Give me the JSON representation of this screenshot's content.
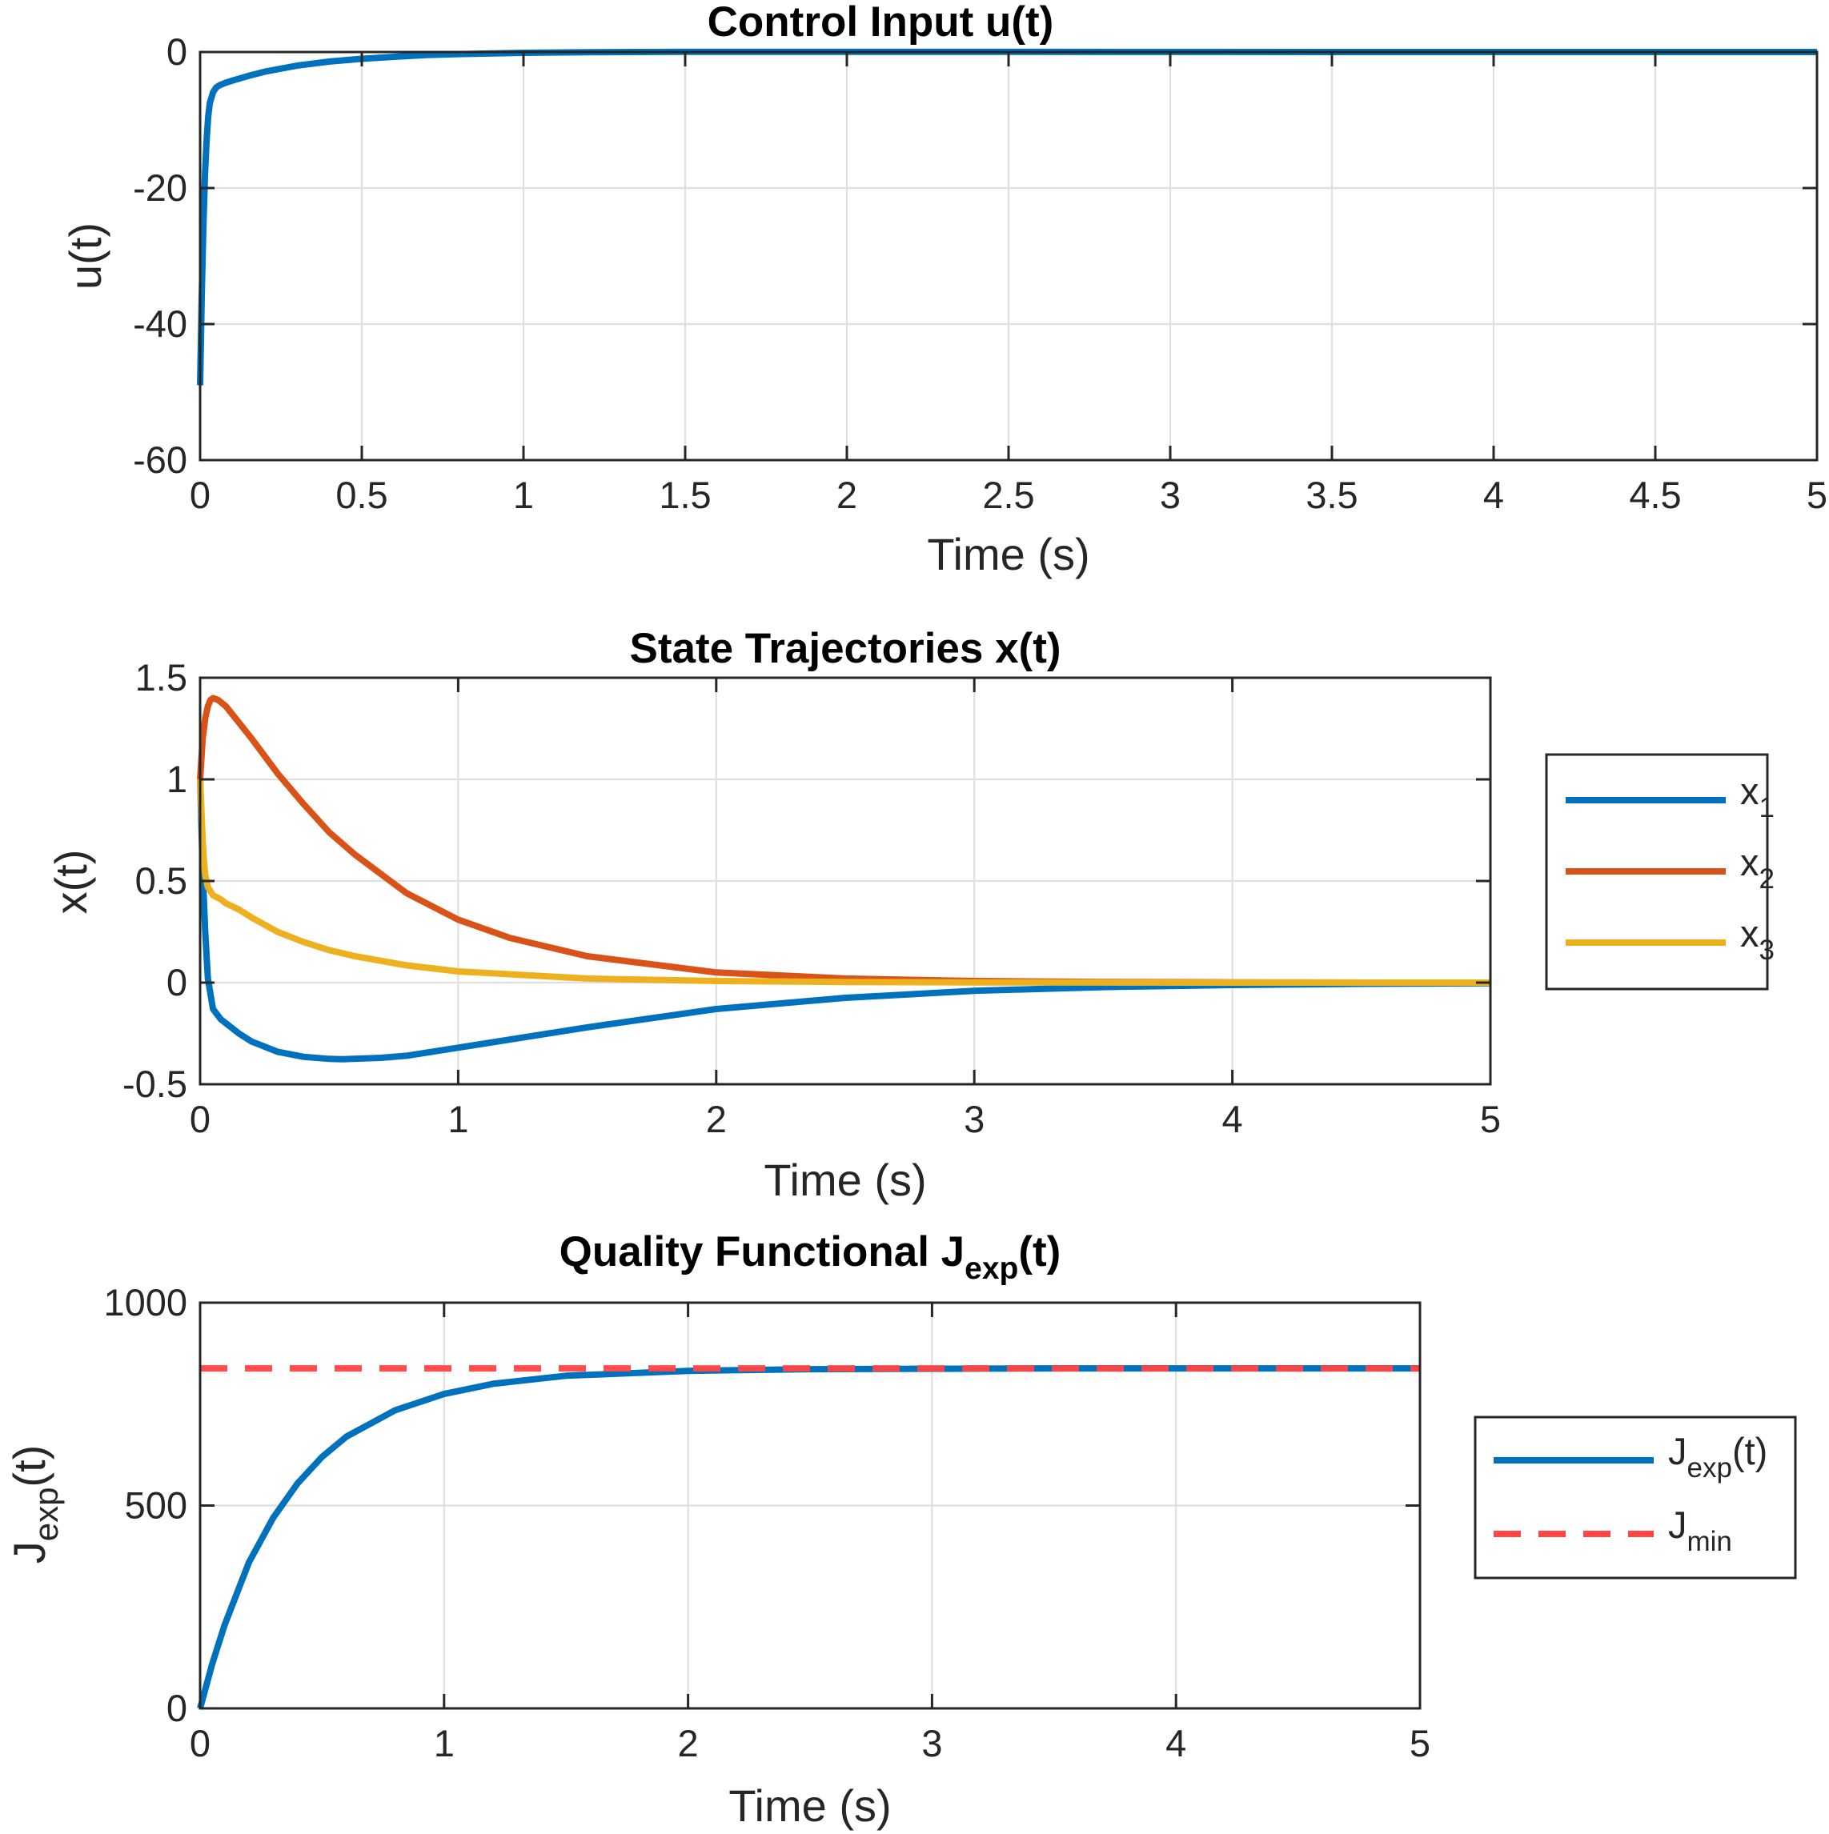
{
  "chart_data": [
    {
      "type": "line",
      "title": "Control Input u(t)",
      "xlabel": "Time (s)",
      "ylabel": "u(t)",
      "xlim": [
        0,
        5
      ],
      "ylim": [
        -60,
        0
      ],
      "xticks": [
        0,
        0.5,
        1,
        1.5,
        2,
        2.5,
        3,
        3.5,
        4,
        4.5,
        5
      ],
      "xtick_labels": [
        "0",
        "0.5",
        "1",
        "1.5",
        "2",
        "2.5",
        "3",
        "3.5",
        "4",
        "4.5",
        "5"
      ],
      "yticks": [
        -60,
        -40,
        -20,
        0
      ],
      "ytick_labels": [
        "-60",
        "-40",
        "-20",
        "0"
      ],
      "grid": true,
      "series": [
        {
          "color": "#0072BD",
          "style": "solid",
          "x": [
            0,
            0.005,
            0.01,
            0.015,
            0.02,
            0.025,
            0.03,
            0.04,
            0.05,
            0.06,
            0.08,
            0.1,
            0.15,
            0.2,
            0.3,
            0.4,
            0.5,
            0.6,
            0.7,
            0.8,
            1.0,
            1.2,
            1.5,
            2.0,
            2.5,
            3.0,
            4.0,
            5.0
          ],
          "y": [
            -49,
            -36,
            -26,
            -18,
            -13,
            -9.5,
            -7.5,
            -5.9,
            -5.2,
            -4.9,
            -4.5,
            -4.2,
            -3.5,
            -2.9,
            -2.0,
            -1.4,
            -1.0,
            -0.7,
            -0.45,
            -0.3,
            -0.12,
            -0.03,
            0.03,
            0.03,
            0.02,
            0.01,
            0.0,
            0.0
          ]
        }
      ]
    },
    {
      "type": "line",
      "title": "State Trajectories x(t)",
      "xlabel": "Time (s)",
      "ylabel": "x(t)",
      "xlim": [
        0,
        5
      ],
      "ylim": [
        -0.5,
        1.5
      ],
      "xticks": [
        0,
        1,
        2,
        3,
        4,
        5
      ],
      "xtick_labels": [
        "0",
        "1",
        "2",
        "3",
        "4",
        "5"
      ],
      "yticks": [
        -0.5,
        0,
        0.5,
        1,
        1.5
      ],
      "ytick_labels": [
        "-0.5",
        "0",
        "0.5",
        "1",
        "1.5"
      ],
      "grid": true,
      "legend": "outside-right",
      "series": [
        {
          "name": "x",
          "sub": "1",
          "color": "#0072BD",
          "style": "solid",
          "x": [
            0,
            0.01,
            0.02,
            0.03,
            0.05,
            0.08,
            0.1,
            0.15,
            0.2,
            0.3,
            0.4,
            0.5,
            0.55,
            0.7,
            0.8,
            1.0,
            1.5,
            2.0,
            2.5,
            3.0,
            3.5,
            4.0,
            4.5,
            5.0
          ],
          "y": [
            1.0,
            0.55,
            0.25,
            0.02,
            -0.13,
            -0.18,
            -0.2,
            -0.25,
            -0.29,
            -0.34,
            -0.365,
            -0.375,
            -0.377,
            -0.37,
            -0.36,
            -0.32,
            -0.22,
            -0.13,
            -0.075,
            -0.04,
            -0.022,
            -0.012,
            -0.006,
            -0.003
          ]
        },
        {
          "name": "x",
          "sub": "2",
          "color": "#D95319",
          "style": "solid",
          "x": [
            0,
            0.01,
            0.02,
            0.03,
            0.04,
            0.05,
            0.07,
            0.1,
            0.15,
            0.2,
            0.3,
            0.4,
            0.5,
            0.6,
            0.8,
            1.0,
            1.2,
            1.5,
            2.0,
            2.5,
            3.0,
            3.5,
            4.0,
            4.5,
            5.0
          ],
          "y": [
            1.0,
            1.2,
            1.3,
            1.36,
            1.39,
            1.4,
            1.39,
            1.36,
            1.28,
            1.2,
            1.03,
            0.88,
            0.74,
            0.63,
            0.44,
            0.31,
            0.22,
            0.13,
            0.05,
            0.02,
            0.008,
            0.003,
            0.001,
            0.0,
            0.0
          ]
        },
        {
          "name": "x",
          "sub": "3",
          "color": "#EDB120",
          "style": "solid",
          "x": [
            0,
            0.005,
            0.01,
            0.015,
            0.02,
            0.03,
            0.05,
            0.08,
            0.1,
            0.15,
            0.2,
            0.3,
            0.4,
            0.5,
            0.6,
            0.8,
            1.0,
            1.5,
            2.0,
            2.5,
            3.0,
            4.0,
            5.0
          ],
          "y": [
            1.0,
            0.85,
            0.7,
            0.6,
            0.53,
            0.47,
            0.43,
            0.41,
            0.39,
            0.36,
            0.32,
            0.25,
            0.2,
            0.16,
            0.13,
            0.085,
            0.055,
            0.02,
            0.008,
            0.003,
            0.001,
            0.0,
            0.0
          ]
        }
      ]
    },
    {
      "type": "line",
      "title": "Quality Functional J",
      "title_sub": "exp",
      "title_tail": "(t)",
      "xlabel": "Time (s)",
      "ylabel": "J",
      "ylabel_sub": "exp",
      "ylabel_tail": "(t)",
      "xlim": [
        0,
        5
      ],
      "ylim": [
        0,
        1000
      ],
      "xticks": [
        0,
        1,
        2,
        3,
        4,
        5
      ],
      "xtick_labels": [
        "0",
        "1",
        "2",
        "3",
        "4",
        "5"
      ],
      "yticks": [
        0,
        500,
        1000
      ],
      "ytick_labels": [
        "0",
        "500",
        "1000"
      ],
      "grid": true,
      "legend": "outside-right",
      "series": [
        {
          "name": "J",
          "sub": "exp",
          "tail": "(t)",
          "color": "#0072BD",
          "style": "solid",
          "x": [
            0,
            0.05,
            0.1,
            0.2,
            0.3,
            0.4,
            0.5,
            0.6,
            0.8,
            1.0,
            1.2,
            1.5,
            2.0,
            2.5,
            3.0,
            3.5,
            4.0,
            4.5,
            5.0
          ],
          "y": [
            0,
            110,
            205,
            360,
            470,
            555,
            620,
            670,
            735,
            775,
            800,
            820,
            832,
            836,
            837,
            838,
            838,
            838,
            838
          ]
        },
        {
          "name": "J",
          "sub": "min",
          "tail": "",
          "color": "#FF4545",
          "style": "dashed",
          "x": [
            0,
            5
          ],
          "y": [
            838,
            838
          ]
        }
      ]
    }
  ]
}
